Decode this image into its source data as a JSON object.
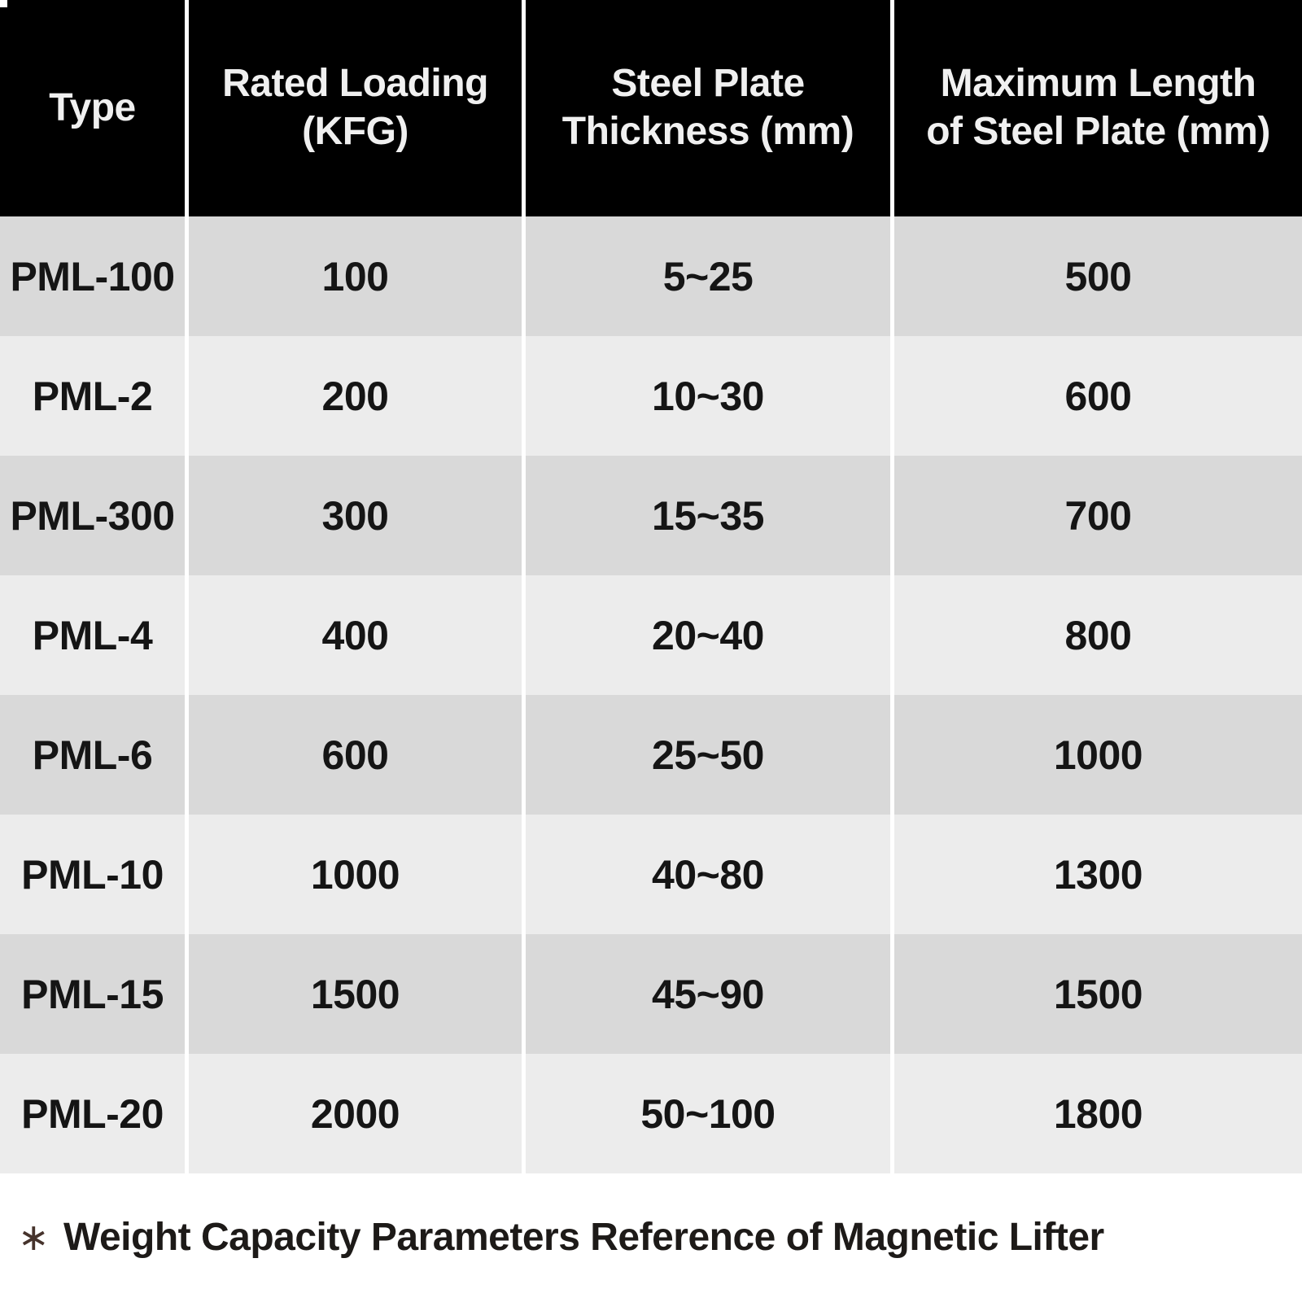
{
  "chart_data": {
    "type": "table",
    "columns": [
      "Type",
      "Rated Loading (KFG)",
      "Steel Plate Thickness (mm)",
      "Maximum Length of Steel Plate (mm)"
    ],
    "header_lines": [
      [
        "Type"
      ],
      [
        "Rated Loading",
        "(KFG)"
      ],
      [
        "Steel Plate",
        "Thickness (mm)"
      ],
      [
        "Maximum Length",
        "of Steel Plate (mm)"
      ]
    ],
    "rows": [
      [
        "PML-100",
        "100",
        "5~25",
        "500"
      ],
      [
        "PML-2",
        "200",
        "10~30",
        "600"
      ],
      [
        "PML-300",
        "300",
        "15~35",
        "700"
      ],
      [
        "PML-4",
        "400",
        "20~40",
        "800"
      ],
      [
        "PML-6",
        "600",
        "25~50",
        "1000"
      ],
      [
        "PML-10",
        "1000",
        "40~80",
        "1300"
      ],
      [
        "PML-15",
        "1500",
        "45~90",
        "1500"
      ],
      [
        "PML-20",
        "2000",
        "50~100",
        "1800"
      ]
    ]
  },
  "footnote": {
    "marker": "∗",
    "text": "Weight Capacity Parameters Reference of Magnetic Lifter"
  },
  "colors": {
    "header_bg": "#000000",
    "header_text": "#f0f0f0",
    "row_shade_dark": "#d9d9d9",
    "row_shade_light": "#ececec",
    "column_separator": "#ffffff",
    "cell_text": "#151515",
    "footnote_text": "#1d1a18",
    "marker": "#46332c",
    "page_bg": "#ffffff"
  }
}
